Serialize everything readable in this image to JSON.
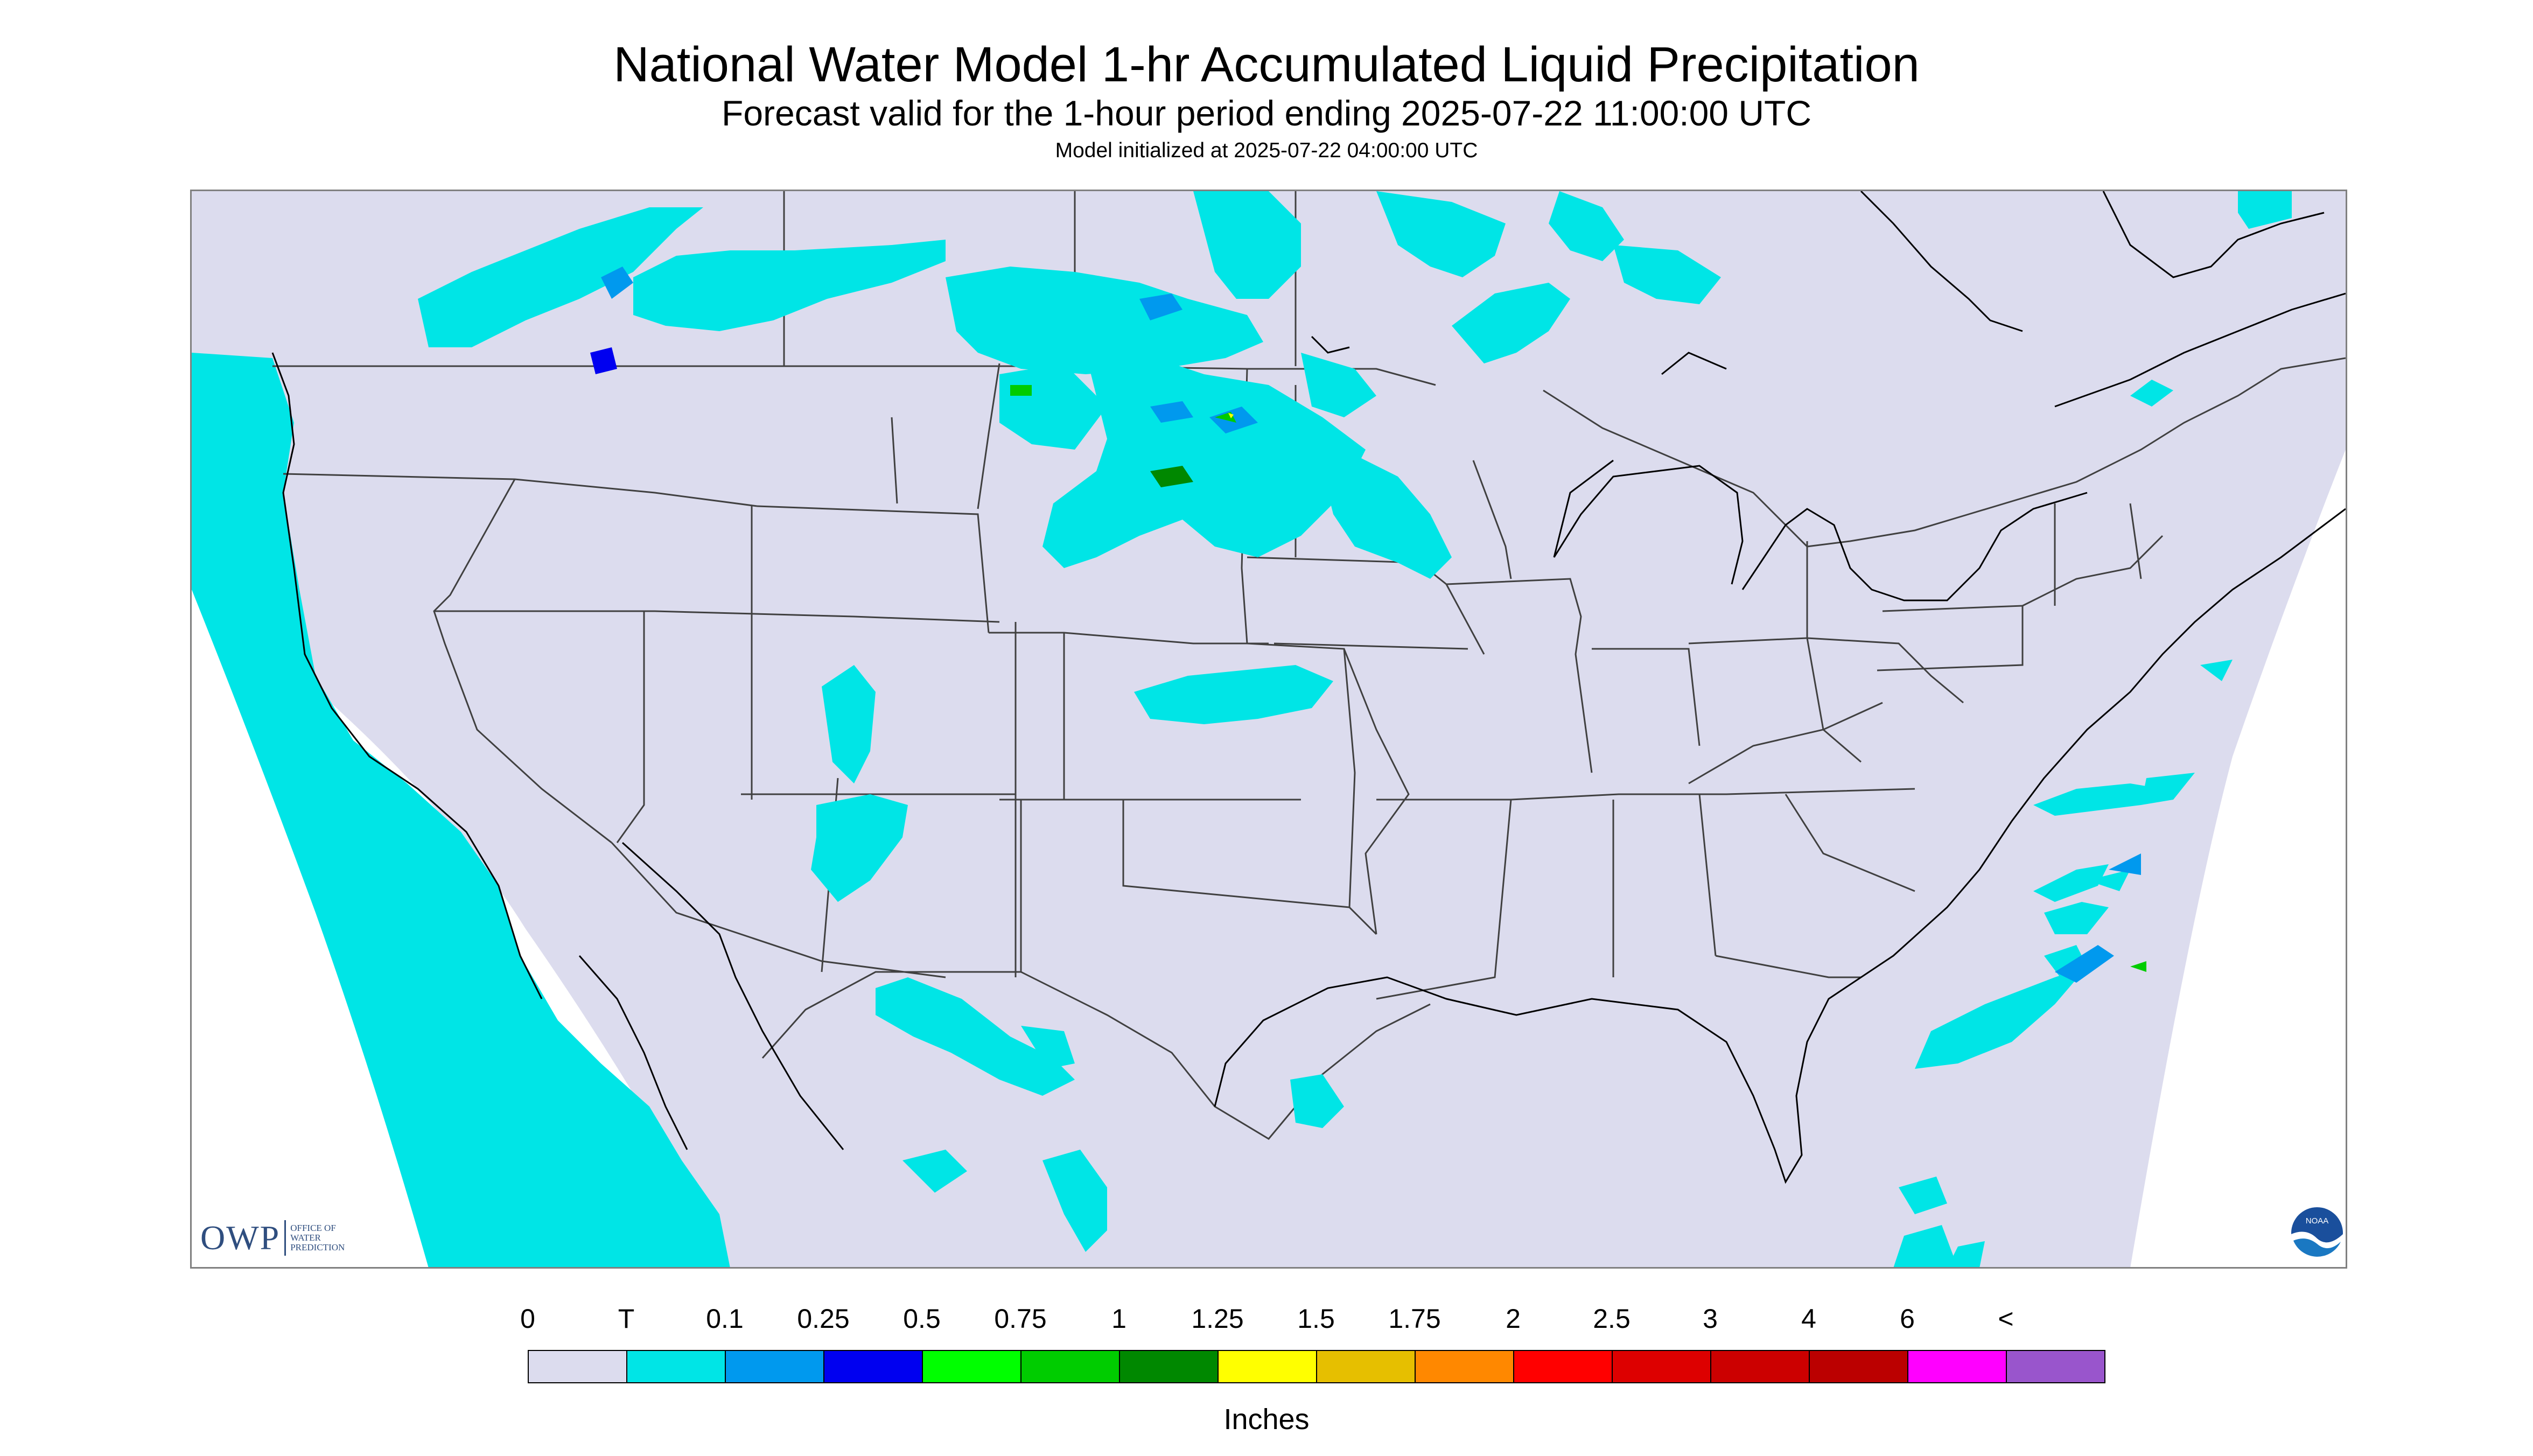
{
  "title": "National Water Model 1-hr Accumulated Liquid Precipitation",
  "subtitle": "Forecast valid for the 1-hour period ending 2025-07-22 11:00:00 UTC",
  "init_line": "Model initialized at 2025-07-22 04:00:00 UTC",
  "logo_owp": {
    "mark": "OWP",
    "text_lines": [
      "OFFICE OF",
      "WATER",
      "PREDICTION"
    ]
  },
  "logo_noaa": "NOAA",
  "legend": {
    "labels": [
      "0",
      "T",
      "0.1",
      "0.25",
      "0.5",
      "0.75",
      "1",
      "1.25",
      "1.5",
      "1.75",
      "2",
      "2.5",
      "3",
      "4",
      "6",
      "<"
    ],
    "colors": [
      "#dcdcee",
      "#00e5e6",
      "#0099ee",
      "#0000f0",
      "#00ff00",
      "#00cc00",
      "#008800",
      "#ffff00",
      "#e6bf00",
      "#ff8800",
      "#ff0000",
      "#dd0000",
      "#cc0000",
      "#bb0000",
      "#ff00ff",
      "#9955cc"
    ],
    "units": "Inches"
  },
  "map_colors": {
    "land": "#dcdcee",
    "outside": "#ffffff",
    "coast": "#000000",
    "state_lines": "#404040"
  }
}
